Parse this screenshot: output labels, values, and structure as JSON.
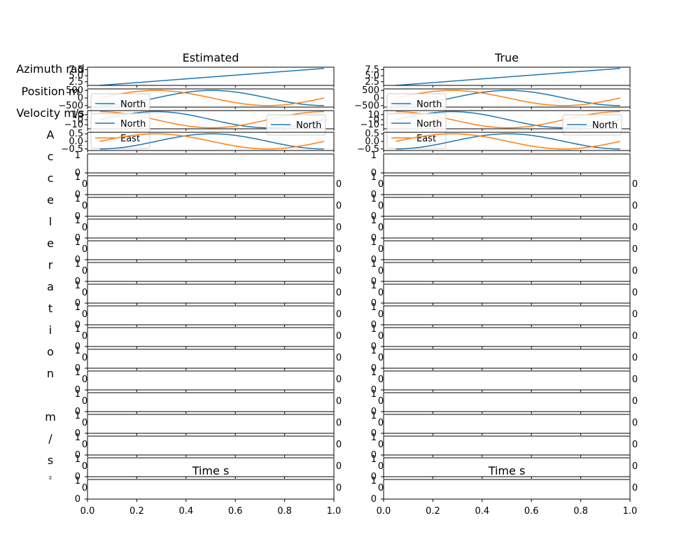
{
  "figure": {
    "ylabels": {
      "azimuth": "Azimuth rad",
      "position": "Position m",
      "velocity": "Velocity m/s",
      "acceleration": "Acceleration m/s²"
    },
    "colors": {
      "north": "#1f77b4",
      "east": "#ff7f0e",
      "axes": "#000000"
    }
  },
  "chart_data": [
    {
      "type": "line",
      "title": "Estimated",
      "xlabel": "Time s",
      "xlim": [
        0.0,
        1.0
      ],
      "xticks": [
        "0.0",
        "0.2",
        "0.4",
        "0.6",
        "0.8",
        "1.0"
      ],
      "panels": [
        {
          "ylabel": "Azimuth rad",
          "x": [
            0.05,
            0.96
          ],
          "ylim": [
            1.0,
            8.5
          ],
          "yticks": [
            "2.5",
            "5.0",
            "7.5"
          ],
          "ytick_values": [
            2.5,
            5.0,
            7.5
          ],
          "series": [
            {
              "values": [
                1.0,
                8.0
              ]
            }
          ],
          "legend": null
        },
        {
          "ylabel": "Position m",
          "x": [
            0.05,
            0.96
          ],
          "ylim": [
            -600,
            600
          ],
          "yticks": [
            "500",
            "0",
            "−500"
          ],
          "ytick_values": [
            500,
            0,
            -500
          ],
          "series": [
            {
              "name": "North",
              "fn": "-cos",
              "amp": 500
            },
            {
              "name": "East",
              "fn": "sin",
              "amp": 500
            }
          ],
          "legend": {
            "entries": [
              "North"
            ],
            "loc": "lower left"
          }
        },
        {
          "ylabel": "Velocity m/s",
          "x": [
            0.05,
            0.96
          ],
          "ylim": [
            -18,
            18
          ],
          "yticks": [
            "10",
            "0",
            "−10"
          ],
          "ytick_values": [
            10,
            0,
            -10
          ],
          "series": [
            {
              "name": "North",
              "fn": "sin",
              "amp": 16
            },
            {
              "name": "East",
              "fn": "cos",
              "amp": 16
            }
          ],
          "legend": {
            "entries": [
              "North",
              "East"
            ],
            "loc": "lower left",
            "second": [
              "North"
            ],
            "second_loc": "lower right"
          }
        },
        {
          "ylabel": "Acceleration m/s²",
          "x": [
            0.05,
            0.96
          ],
          "ylim": [
            -0.6,
            0.6
          ],
          "yticks": [
            "0.5",
            "0.0",
            "−0.5"
          ],
          "ytick_values": [
            0.5,
            0.0,
            -0.5
          ],
          "series": [
            {
              "name": "North",
              "fn": "-cos",
              "amp": 0.5
            },
            {
              "name": "East",
              "fn": "sin",
              "amp": 0.5
            }
          ],
          "legend": null
        }
      ],
      "empty_panels": 16,
      "empty_panel_ylim": [
        0,
        1
      ],
      "empty_panel_yticks": [
        "1",
        "0"
      ],
      "empty_panel_right_label": "0"
    },
    {
      "type": "line",
      "title": "True",
      "xlabel": "Time s",
      "xlim": [
        0.0,
        1.0
      ],
      "xticks": [
        "0.0",
        "0.2",
        "0.4",
        "0.6",
        "0.8",
        "1.0"
      ],
      "panels": [
        {
          "ylabel": "",
          "x": [
            0.05,
            0.96
          ],
          "ylim": [
            1.0,
            8.5
          ],
          "yticks": [
            "2.5",
            "5.0",
            "7.5"
          ],
          "ytick_values": [
            2.5,
            5.0,
            7.5
          ],
          "series": [
            {
              "values": [
                1.0,
                8.0
              ]
            }
          ],
          "legend": null
        },
        {
          "ylabel": "",
          "x": [
            0.05,
            0.96
          ],
          "ylim": [
            -600,
            600
          ],
          "yticks": [
            "500",
            "0",
            "−500"
          ],
          "ytick_values": [
            500,
            0,
            -500
          ],
          "series": [
            {
              "name": "North",
              "fn": "-cos",
              "amp": 500
            },
            {
              "name": "East",
              "fn": "sin",
              "amp": 500
            }
          ],
          "legend": {
            "entries": [
              "North"
            ],
            "loc": "lower left"
          }
        },
        {
          "ylabel": "",
          "x": [
            0.05,
            0.96
          ],
          "ylim": [
            -18,
            18
          ],
          "yticks": [
            "10",
            "0",
            "−10"
          ],
          "ytick_values": [
            10,
            0,
            -10
          ],
          "series": [
            {
              "name": "North",
              "fn": "sin",
              "amp": 16
            },
            {
              "name": "East",
              "fn": "cos",
              "amp": 16
            }
          ],
          "legend": {
            "entries": [
              "North",
              "East"
            ],
            "loc": "lower left",
            "second": [
              "North"
            ],
            "second_loc": "lower right"
          }
        },
        {
          "ylabel": "",
          "x": [
            0.05,
            0.96
          ],
          "ylim": [
            -0.6,
            0.6
          ],
          "yticks": [
            "0.5",
            "0.0",
            "−0.5"
          ],
          "ytick_values": [
            0.5,
            0.0,
            -0.5
          ],
          "series": [
            {
              "name": "North",
              "fn": "-cos",
              "amp": 0.5
            },
            {
              "name": "East",
              "fn": "sin",
              "amp": 0.5
            }
          ],
          "legend": null
        }
      ],
      "empty_panels": 16,
      "empty_panel_ylim": [
        0,
        1
      ],
      "empty_panel_yticks": [
        "1",
        "0"
      ],
      "empty_panel_right_label": "0"
    }
  ]
}
